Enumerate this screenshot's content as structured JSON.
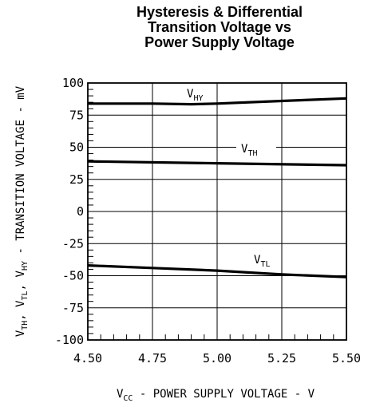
{
  "chart_data": {
    "type": "line",
    "title_lines": [
      "Hysteresis & Differential",
      "Transition Voltage vs",
      "Power Supply Voltage"
    ],
    "xlabel": {
      "main": "V",
      "sub": "CC",
      "rest": " - POWER SUPPLY VOLTAGE - V"
    },
    "ylabel": [
      {
        "main": "V",
        "sub": "TH"
      },
      {
        "main": ", V",
        "sub": "TL"
      },
      {
        "main": ", V",
        "sub": "HY"
      },
      {
        "main": " - TRANSITION VOLTAGE - mV",
        "sub": ""
      }
    ],
    "xlim": [
      4.5,
      5.5
    ],
    "ylim": [
      -100,
      100
    ],
    "x_ticks": [
      4.5,
      4.75,
      5.0,
      5.25,
      5.5
    ],
    "x_tick_labels": [
      "4.50",
      "4.75",
      "5.00",
      "5.25",
      "5.50"
    ],
    "y_ticks": [
      100,
      75,
      50,
      25,
      0,
      -25,
      -50,
      -75,
      -100
    ],
    "y_tick_labels": [
      "100",
      "75",
      "50",
      "25",
      "0",
      "-25",
      "-50",
      "-75",
      "-100"
    ],
    "grid": true,
    "series": [
      {
        "name": "V",
        "name_sub": "HY",
        "x": [
          4.5,
          4.75,
          4.9,
          5.0,
          5.25,
          5.5
        ],
        "y": [
          84,
          84,
          83.5,
          84,
          86,
          88
        ]
      },
      {
        "name": "V",
        "name_sub": "TH",
        "x": [
          4.5,
          5.0,
          5.5
        ],
        "y": [
          39,
          37.5,
          36
        ]
      },
      {
        "name": "V",
        "name_sub": "TL",
        "x": [
          4.5,
          4.75,
          5.0,
          5.25,
          5.5
        ],
        "y": [
          -42,
          -44,
          -46,
          -49,
          -51
        ]
      }
    ]
  }
}
